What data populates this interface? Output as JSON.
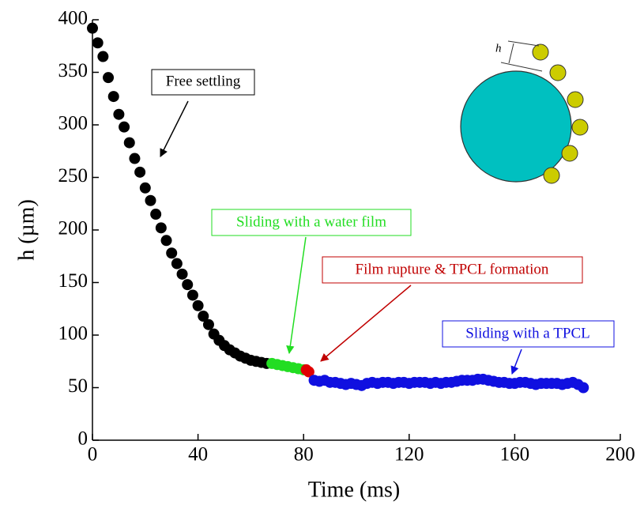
{
  "chart_data": {
    "type": "scatter",
    "x_label": "Time (ms)",
    "y_label": "h (µm)",
    "xlim": [
      0,
      200
    ],
    "xticks": [
      0,
      40,
      80,
      120,
      160,
      200
    ],
    "ylim": [
      0,
      400
    ],
    "yticks": [
      0,
      50,
      100,
      150,
      200,
      250,
      300,
      350,
      400
    ],
    "inset_label": "h",
    "series": [
      {
        "name": "Free settling",
        "color": "#000000",
        "x": [
          0,
          2,
          4,
          6,
          8,
          10,
          12,
          14,
          16,
          18,
          20,
          22,
          24,
          26,
          28,
          30,
          32,
          34,
          36,
          38,
          40,
          42,
          44,
          46,
          48,
          50,
          52,
          54,
          56,
          58,
          60,
          62,
          64,
          66
        ],
        "values": [
          392,
          378,
          365,
          345,
          327,
          310,
          298,
          283,
          268,
          255,
          240,
          228,
          215,
          202,
          190,
          178,
          168,
          158,
          148,
          138,
          128,
          118,
          110,
          101,
          95,
          90,
          86,
          83,
          80,
          78,
          76,
          75,
          74,
          73
        ]
      },
      {
        "name": "Sliding with a water film",
        "color": "#22dd22",
        "x": [
          68,
          70,
          72,
          74,
          76,
          78,
          80
        ],
        "values": [
          73,
          72,
          71,
          70,
          69,
          68,
          67
        ]
      },
      {
        "name": "Film rupture & TPCL formation",
        "color": "#e00000",
        "x": [
          81,
          82
        ],
        "values": [
          67,
          65
        ]
      },
      {
        "name": "Sliding with a TPCL",
        "color": "#1010e0",
        "x": [
          84,
          86,
          88,
          90,
          92,
          94,
          96,
          98,
          100,
          102,
          104,
          106,
          108,
          110,
          112,
          114,
          116,
          118,
          120,
          122,
          124,
          126,
          128,
          130,
          132,
          134,
          136,
          138,
          140,
          142,
          144,
          146,
          148,
          150,
          152,
          154,
          156,
          158,
          160,
          162,
          164,
          166,
          168,
          170,
          172,
          174,
          176,
          178,
          180,
          182,
          184,
          186
        ],
        "values": [
          57,
          56,
          57,
          55,
          55,
          54,
          53,
          54,
          53,
          52,
          54,
          55,
          54,
          55,
          55,
          54,
          55,
          55,
          54,
          55,
          55,
          55,
          54,
          55,
          54,
          55,
          55,
          56,
          57,
          57,
          57,
          58,
          58,
          57,
          56,
          55,
          55,
          54,
          54,
          55,
          55,
          54,
          53,
          54,
          54,
          54,
          54,
          53,
          54,
          55,
          53,
          50
        ]
      }
    ]
  }
}
